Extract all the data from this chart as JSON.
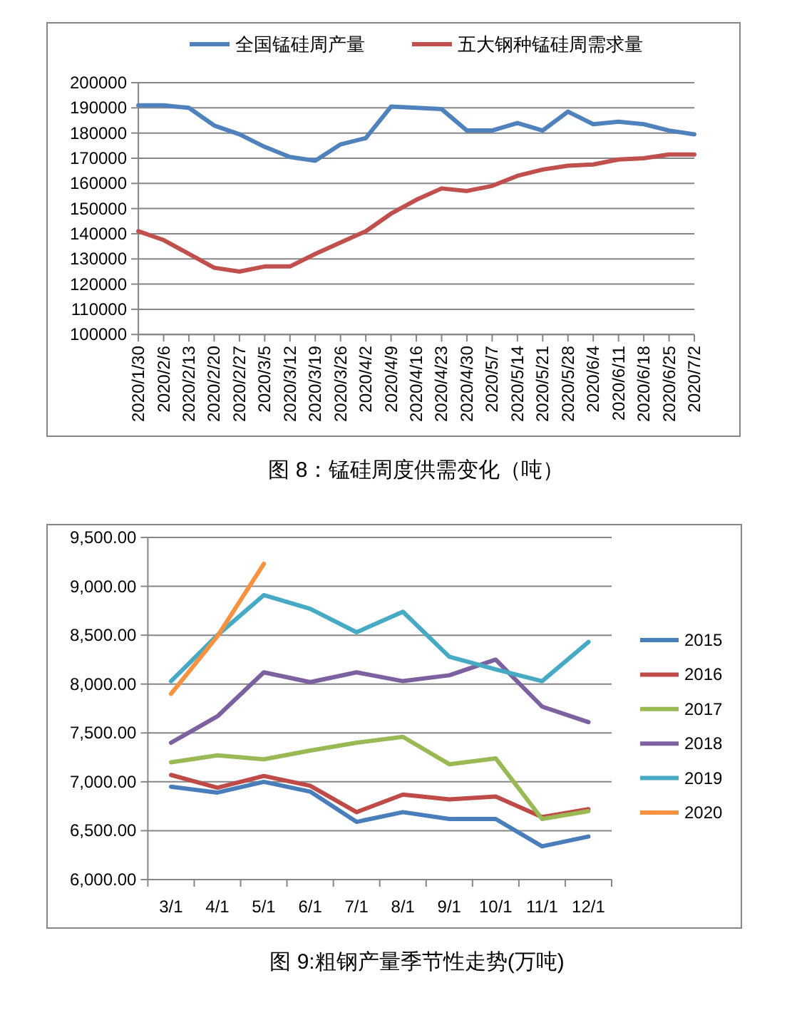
{
  "chart_data": [
    {
      "type": "line",
      "title": "图 8：锰硅周度供需变化（吨）",
      "categories": [
        "2020/1/30",
        "2020/2/6",
        "2020/2/13",
        "2020/2/20",
        "2020/2/27",
        "2020/3/5",
        "2020/3/12",
        "2020/3/19",
        "2020/3/26",
        "2020/4/2",
        "2020/4/9",
        "2020/4/16",
        "2020/4/23",
        "2020/4/30",
        "2020/5/7",
        "2020/5/14",
        "2020/5/21",
        "2020/5/28",
        "2020/6/4",
        "2020/6/11",
        "2020/6/18",
        "2020/6/25",
        "2020/7/2"
      ],
      "series": [
        {
          "name": "全国锰硅周产量",
          "color": "#4f81bd",
          "values": [
            191000,
            191000,
            190000,
            183000,
            179500,
            174500,
            170500,
            169000,
            175500,
            178000,
            190500,
            190000,
            189500,
            181000,
            181000,
            184000,
            181000,
            188500,
            183500,
            184500,
            183500,
            181000,
            179500
          ]
        },
        {
          "name": "五大钢种锰硅周需求量",
          "color": "#c0504d",
          "values": [
            141000,
            137500,
            132000,
            126500,
            125000,
            127000,
            127000,
            132000,
            136500,
            141000,
            148000,
            153500,
            158000,
            157000,
            159000,
            163000,
            165500,
            167000,
            167500,
            169500,
            170000,
            171500,
            171500
          ]
        }
      ],
      "ylim": [
        100000,
        200000
      ],
      "yticks": [
        100000,
        110000,
        120000,
        130000,
        140000,
        150000,
        160000,
        170000,
        180000,
        190000,
        200000
      ],
      "grid": "y",
      "legend": "top"
    },
    {
      "type": "line",
      "title": "图 9:粗钢产量季节性走势(万吨)",
      "categories": [
        "3/1",
        "4/1",
        "5/1",
        "6/1",
        "7/1",
        "8/1",
        "9/1",
        "10/1",
        "11/1",
        "12/1"
      ],
      "series": [
        {
          "name": "2015",
          "color": "#4a7ebb",
          "values": [
            6950,
            6890,
            7000,
            6900,
            6590,
            6690,
            6620,
            6620,
            6340,
            6440
          ]
        },
        {
          "name": "2016",
          "color": "#be4b48",
          "values": [
            7070,
            6940,
            7060,
            6960,
            6690,
            6870,
            6820,
            6850,
            6640,
            6720
          ]
        },
        {
          "name": "2017",
          "color": "#98b954",
          "values": [
            7200,
            7270,
            7230,
            7320,
            7400,
            7460,
            7180,
            7240,
            6620,
            6700
          ]
        },
        {
          "name": "2018",
          "color": "#7d60a0",
          "values": [
            7400,
            7670,
            8120,
            8020,
            8120,
            8030,
            8090,
            8250,
            7770,
            7610
          ]
        },
        {
          "name": "2019",
          "color": "#46aac5",
          "values": [
            8030,
            8500,
            8910,
            8770,
            8530,
            8740,
            8280,
            8150,
            8030,
            8430
          ]
        },
        {
          "name": "2020",
          "color": "#f69240",
          "values": [
            7900,
            8490,
            9230,
            null,
            null,
            null,
            null,
            null,
            null,
            null
          ]
        }
      ],
      "ylim": [
        6000,
        9500
      ],
      "yticks": [
        {
          "value": 6000,
          "label": "6,000.00"
        },
        {
          "value": 6500,
          "label": "6,500.00"
        },
        {
          "value": 7000,
          "label": "7,000.00"
        },
        {
          "value": 7500,
          "label": "7,500.00"
        },
        {
          "value": 8000,
          "label": "8,000.00"
        },
        {
          "value": 8500,
          "label": "8,500.00"
        },
        {
          "value": 9000,
          "label": "9,000.00"
        },
        {
          "value": 9500,
          "label": "9,500.00"
        }
      ],
      "grid": "y",
      "legend": "right"
    }
  ]
}
